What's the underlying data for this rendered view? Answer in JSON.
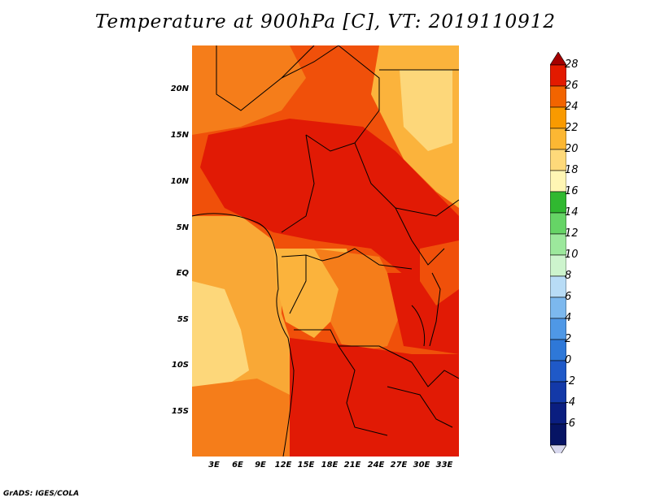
{
  "title": "Temperature at 900hPa [C], VT: 2019110912",
  "footer": "GrADS: IGES/COLA",
  "y_axis_labels": [
    "20N",
    "15N",
    "10N",
    "5N",
    "EQ",
    "5S",
    "10S",
    "15S"
  ],
  "x_axis_labels": [
    "3E",
    "6E",
    "9E",
    "12E",
    "15E",
    "18E",
    "21E",
    "24E",
    "27E",
    "30E",
    "33E"
  ],
  "colorbar": {
    "labels": [
      "28",
      "26",
      "24",
      "22",
      "20",
      "18",
      "16",
      "14",
      "12",
      "10",
      "8",
      "6",
      "4",
      "2",
      "0",
      "-2",
      "-4",
      "-6"
    ],
    "colors": [
      "#a50000",
      "#e31a00",
      "#f26400",
      "#f99a00",
      "#fcb733",
      "#fed97a",
      "#fff6b4",
      "#30b830",
      "#66d466",
      "#9ce89c",
      "#cdf4cd",
      "#b8dcf6",
      "#7cb8ee",
      "#4f98e6",
      "#2e78d8",
      "#1f59c8",
      "#1339a8",
      "#0a1e80",
      "#061464",
      "#d8d8ee"
    ]
  },
  "map": {
    "fill_colors": {
      "hot": "#e11a05",
      "warm": "#f0500a",
      "mild": "#f57d1a",
      "cool": "#fbb33c",
      "cold": "#fdd77a",
      "sea": "#f9a836"
    }
  }
}
